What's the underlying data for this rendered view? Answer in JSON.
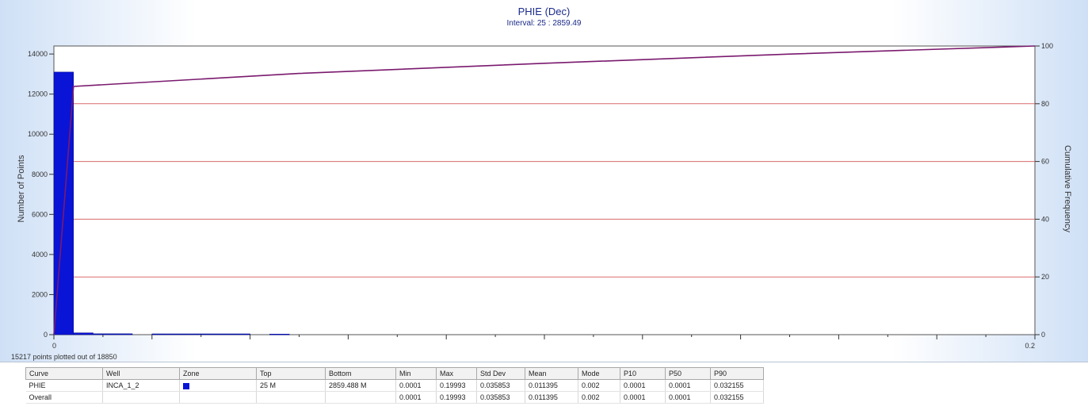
{
  "chart_data": {
    "type": "bar",
    "title": "PHIE (Dec)",
    "subtitle": "Interval: 25 : 2859.49",
    "xlim": [
      0,
      0.2
    ],
    "x_tick_labels": [
      "0",
      "0.2"
    ],
    "ylabel": "Number of Points",
    "ylim": [
      0,
      14400
    ],
    "y_ticks": [
      0,
      2000,
      4000,
      6000,
      8000,
      10000,
      12000,
      14000
    ],
    "y2label": "Cumulative Frequency",
    "y2lim": [
      0,
      100
    ],
    "y2_ticks": [
      0,
      20,
      40,
      60,
      80,
      100
    ],
    "grid": "horizontal at 20, 40, 60, 80 (right axis)",
    "bars": [
      {
        "x0": 0.0,
        "x1": 0.004,
        "value": 13100
      },
      {
        "x0": 0.004,
        "x1": 0.008,
        "value": 90
      },
      {
        "x0": 0.008,
        "x1": 0.016,
        "value": 45
      },
      {
        "x0": 0.02,
        "x1": 0.04,
        "value": 40
      },
      {
        "x0": 0.044,
        "x1": 0.048,
        "value": 30
      }
    ],
    "cumulative": {
      "x": [
        0,
        0.004,
        0.05,
        0.1,
        0.15,
        0.2
      ],
      "y": [
        0,
        86,
        90.5,
        94,
        97.2,
        100
      ]
    },
    "colors": {
      "bar": "#0a14d6",
      "cumulative": "#7a1a6e",
      "grid": "#d86a6a",
      "title": "#1a2a8a"
    }
  },
  "points_note": "15217 points plotted out of 18850",
  "stats": {
    "headers": [
      "Curve",
      "Well",
      "Zone",
      "Top",
      "Bottom",
      "Min",
      "Max",
      "Std Dev",
      "Mean",
      "Mode",
      "P10",
      "P50",
      "P90"
    ],
    "rows": [
      {
        "curve": "PHIE",
        "well": "INCA_1_2",
        "zone_color": "#0a14d6",
        "top": "25 M",
        "bottom": "2859.488 M",
        "min": "0.0001",
        "max": "0.19993",
        "std_dev": "0.035853",
        "mean": "0.011395",
        "mode": "0.002",
        "p10": "0.0001",
        "p50": "0.0001",
        "p90": "0.032155"
      },
      {
        "curve": "Overall",
        "well": "",
        "zone_color": "",
        "top": "",
        "bottom": "",
        "min": "0.0001",
        "max": "0.19993",
        "std_dev": "0.035853",
        "mean": "0.011395",
        "mode": "0.002",
        "p10": "0.0001",
        "p50": "0.0001",
        "p90": "0.032155"
      }
    ]
  }
}
